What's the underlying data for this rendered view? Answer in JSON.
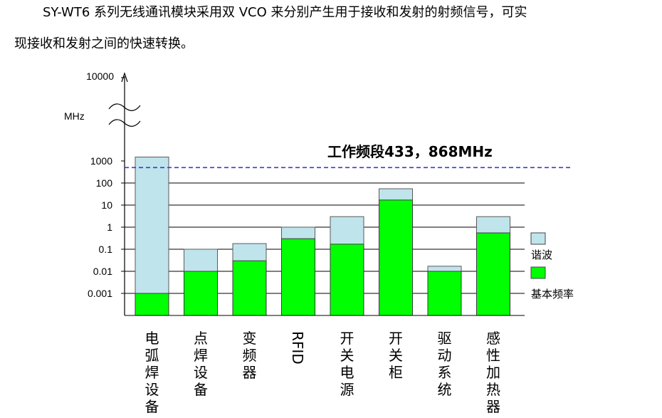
{
  "text": {
    "line1": "SY-WT6 系列无线通讯模块采用双 VCO 来分别产生用于接收和发射的射频信号，可实",
    "line2": "现接收和发射之间的快速转换。"
  },
  "chart_data": {
    "type": "bar",
    "scale": "log",
    "y_tick_labels": [
      "0.001",
      "0.01",
      "0.1",
      "1",
      "10",
      "100",
      "1000",
      "10000"
    ],
    "y_unit_label": "MHz",
    "axis_break": true,
    "categories": [
      "电弧焊设备",
      "点焊设备",
      "变频器",
      "RFID",
      "开关电源",
      "开关柜",
      "驱动系统",
      "感性加热器"
    ],
    "series": [
      {
        "name": "基本频率",
        "color": "#00ff00",
        "values": [
          0.001,
          0.01,
          0.03,
          0.3,
          0.17,
          17,
          0.01,
          0.55
        ]
      },
      {
        "name": "谐波",
        "color": "#c0e4ec",
        "values": [
          1500,
          0.1,
          0.18,
          1,
          3,
          55,
          0.017,
          3
        ]
      }
    ],
    "reference_line": {
      "label": "工作频段433，868MHz",
      "value": 500,
      "color": "#3a3ac8"
    },
    "grid": true,
    "legend_position": "right"
  }
}
